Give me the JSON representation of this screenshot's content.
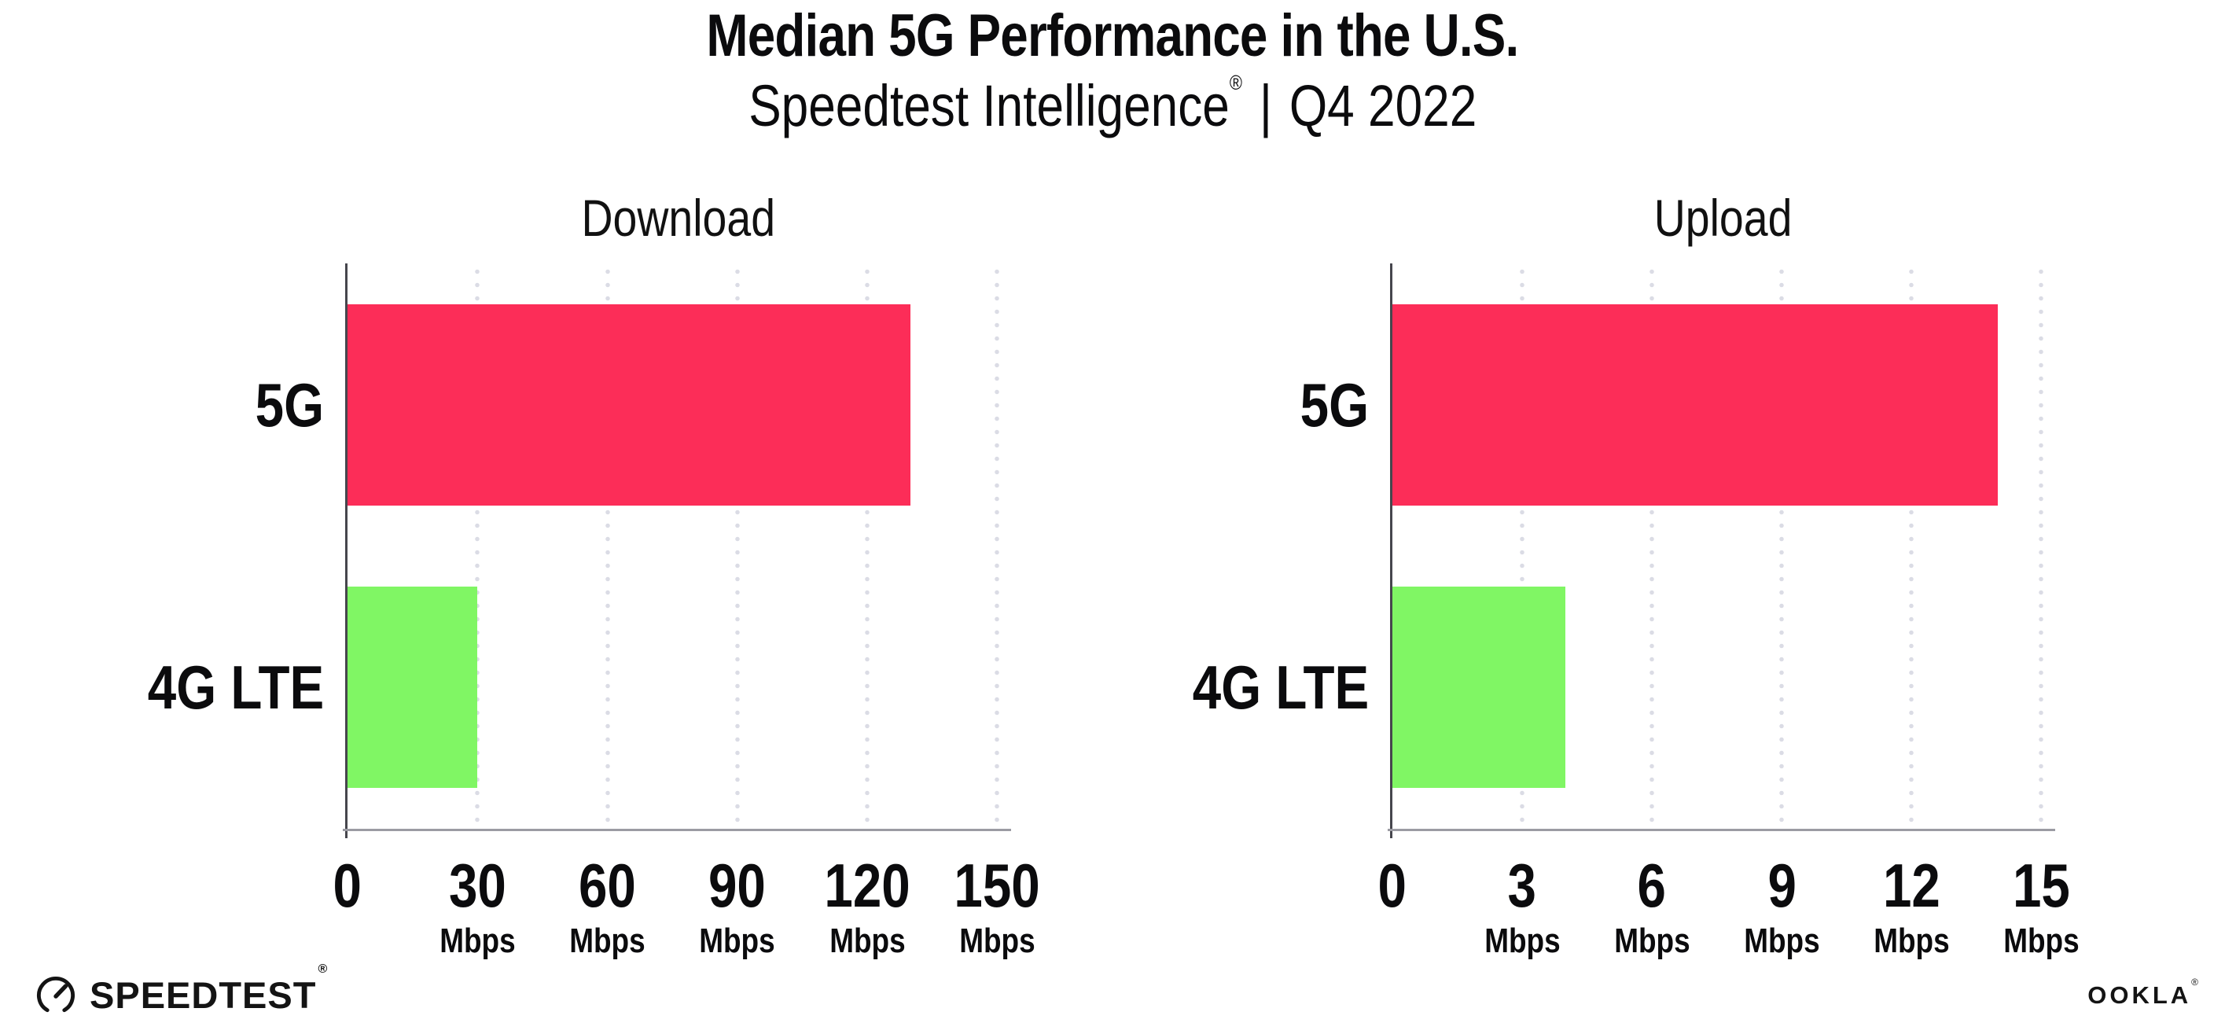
{
  "header": {
    "title": "Median 5G Performance in the U.S.",
    "subtitle": {
      "brand": "Speedtest Intelligence",
      "registered": "®",
      "separator": "|",
      "period": "Q4 2022"
    }
  },
  "colors": {
    "bar_5g": "#FC2D58",
    "bar_4g_lte": "#80F664",
    "grid_dots": "#DBDCE5",
    "axis_y": "#46464D",
    "axis_x": "#9B9BA3",
    "text": "#0B0B0D"
  },
  "chart_data": [
    {
      "type": "bar",
      "orientation": "horizontal",
      "title": "Download",
      "categories": [
        "5G",
        "4G LTE"
      ],
      "values": [
        130,
        30
      ],
      "unit": "Mbps",
      "xlim": [
        0,
        150
      ],
      "xticks": [
        0,
        30,
        60,
        90,
        120,
        150
      ],
      "xtick_unit_label": "Mbps",
      "grid": "dotted vertical lines at major ticks",
      "legend": "none",
      "bar_colors": [
        "#FC2D58",
        "#80F664"
      ]
    },
    {
      "type": "bar",
      "orientation": "horizontal",
      "title": "Upload",
      "categories": [
        "5G",
        "4G LTE"
      ],
      "values": [
        14,
        4
      ],
      "unit": "Mbps",
      "xlim": [
        0,
        15
      ],
      "xticks": [
        0,
        3,
        6,
        9,
        12,
        15
      ],
      "xtick_unit_label": "Mbps",
      "grid": "dotted vertical lines at major ticks",
      "legend": "none",
      "bar_colors": [
        "#FC2D58",
        "#80F664"
      ]
    }
  ],
  "footer": {
    "speedtest_label": "SPEEDTEST",
    "speedtest_mark": "®",
    "ookla_label": "OOKLA",
    "ookla_mark": "®"
  }
}
